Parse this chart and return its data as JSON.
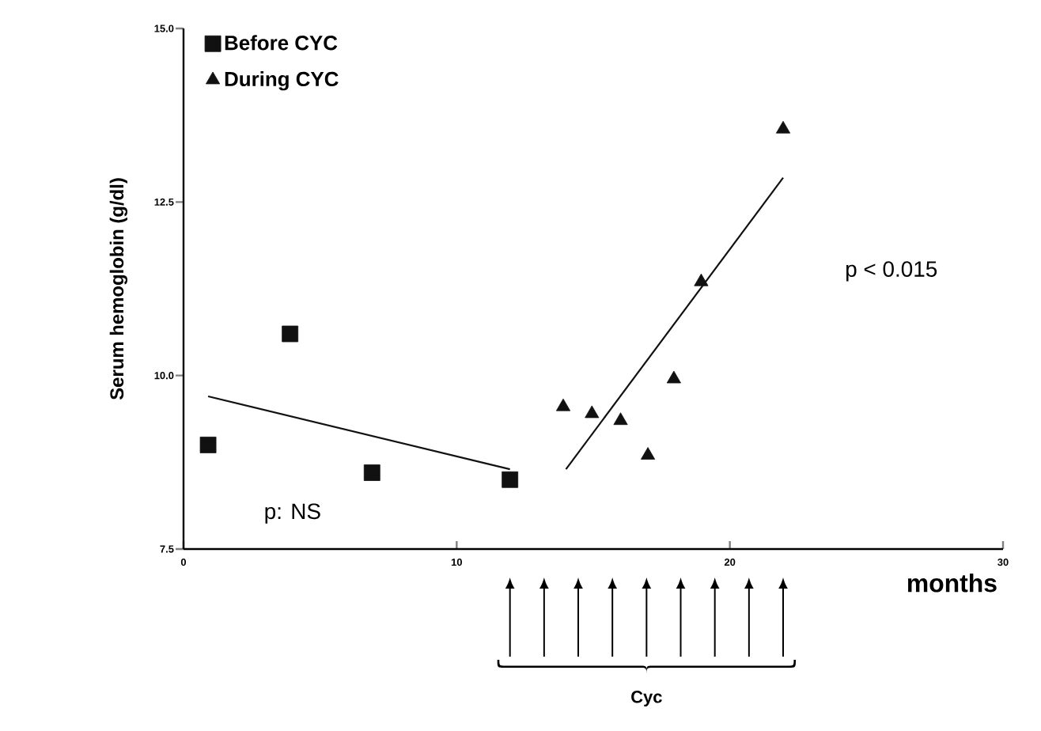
{
  "chart_data": {
    "type": "scatter",
    "xlabel": "months",
    "ylabel": "Serum hemoglobin (g/dl)",
    "xlim": [
      0,
      30
    ],
    "ylim": [
      7.5,
      15
    ],
    "xticks": [
      0,
      10,
      20,
      30
    ],
    "yticks": [
      7.5,
      {
        "value": 10,
        "label": "10.0"
      },
      12.5,
      {
        "value": 15,
        "label": "15.0"
      }
    ],
    "legend": "top left",
    "series": [
      {
        "name": "Before CYC",
        "marker": "square",
        "color": "#111111",
        "x": [
          0.9,
          3.9,
          6.9,
          11.95
        ],
        "values": [
          9.0,
          10.6,
          8.6,
          8.5
        ]
      },
      {
        "name": "During CYC",
        "marker": "triangle",
        "color": "#111111",
        "x": [
          13.9,
          14.95,
          16.0,
          17.0,
          17.95,
          18.95,
          21.95
        ],
        "values": [
          9.55,
          9.45,
          9.35,
          8.85,
          9.95,
          11.35,
          13.55
        ]
      },
      {
        "type": "line",
        "line_style": "solid",
        "color": "#111111",
        "x": [
          0.9,
          11.95
        ],
        "values": [
          9.7,
          8.65
        ]
      },
      {
        "type": "line",
        "line_style": "solid",
        "color": "#111111",
        "x": [
          14.0,
          21.95
        ],
        "values": [
          8.65,
          12.85
        ]
      }
    ],
    "annotations": [
      "p: NS",
      "p < 0.015",
      "Cyc"
    ]
  }
}
